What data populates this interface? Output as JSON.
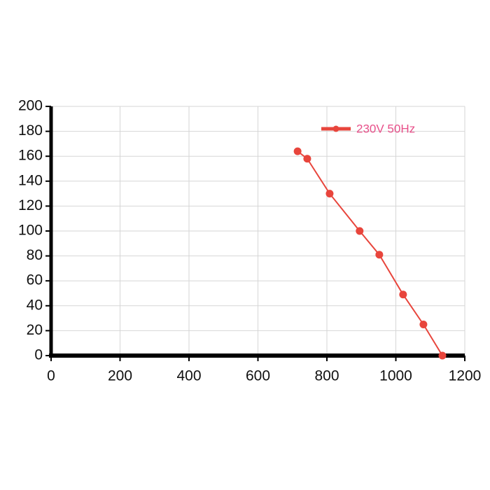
{
  "chart_data": {
    "type": "line",
    "series": [
      {
        "name": "230V 50Hz",
        "color": "#e8453c",
        "x": [
          715,
          743,
          808,
          895,
          952,
          1021,
          1080,
          1135
        ],
        "values": [
          164,
          158,
          130,
          100,
          81,
          49,
          25,
          0
        ]
      }
    ],
    "xlim": [
      0,
      1200
    ],
    "xticks": [
      0,
      200,
      400,
      600,
      800,
      1000,
      1200
    ],
    "ylim": [
      0,
      200
    ],
    "yticks": [
      0,
      20,
      40,
      60,
      80,
      100,
      120,
      140,
      160,
      180,
      200
    ],
    "grid": true,
    "legend": "upper right"
  }
}
